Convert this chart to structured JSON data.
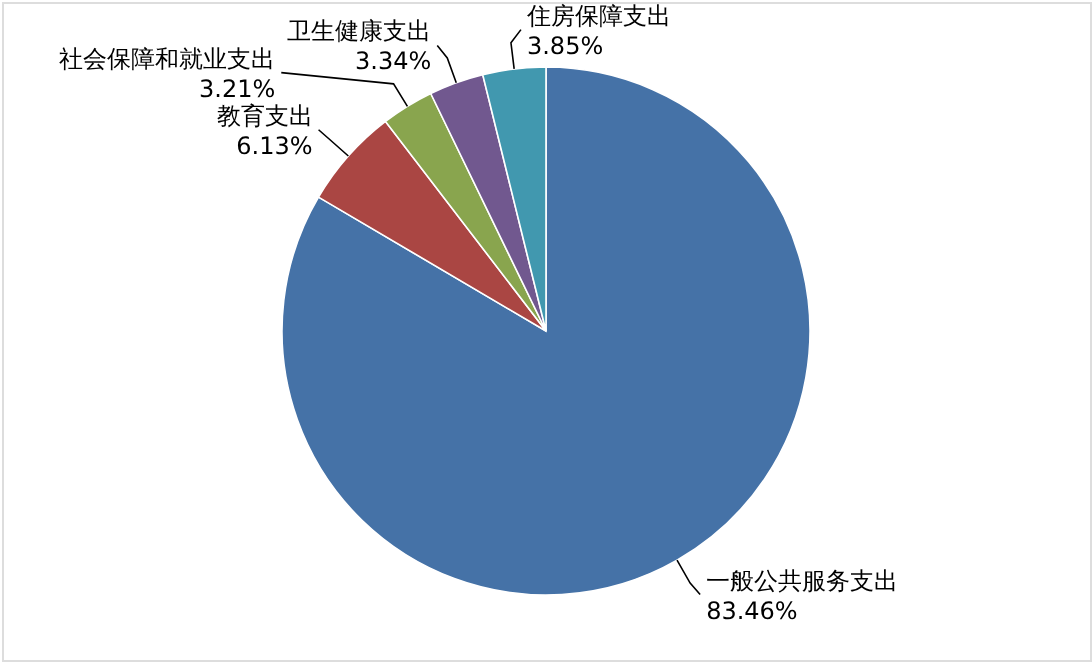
{
  "chart_data": {
    "type": "pie",
    "categories": [
      "一般公共服务支出",
      "教育支出",
      "社会保障和就业支出",
      "卫生健康支出",
      "住房保障支出"
    ],
    "values": [
      83.46,
      6.13,
      3.21,
      3.34,
      3.85
    ],
    "colors": [
      "#4572a7",
      "#aa4643",
      "#89a54e",
      "#71588f",
      "#4198af"
    ],
    "value_labels": [
      "83.46%",
      "6.13%",
      "3.21%",
      "3.34%",
      "3.85%"
    ]
  }
}
